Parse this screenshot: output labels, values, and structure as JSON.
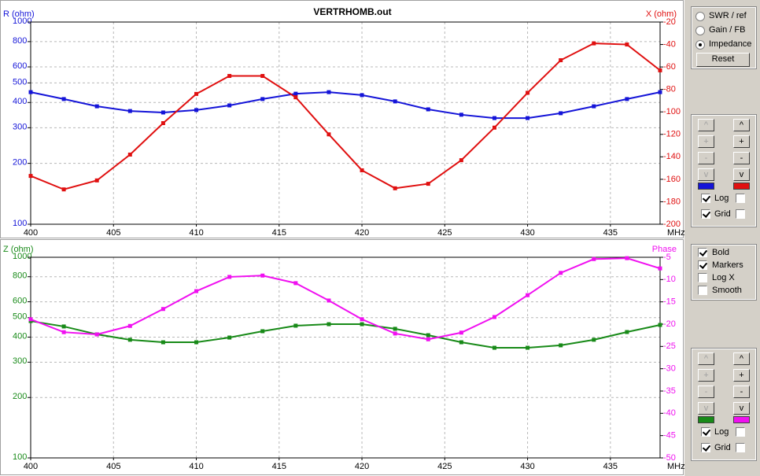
{
  "chart_data": [
    {
      "type": "line",
      "title": "VERTRHOMB.out",
      "x_unit": "MHz",
      "x": [
        400,
        402,
        404,
        406,
        408,
        410,
        412,
        414,
        416,
        418,
        420,
        422,
        424,
        426,
        428,
        430,
        432,
        434,
        436,
        438
      ],
      "xlim": [
        400,
        438
      ],
      "xticks": [
        400,
        405,
        410,
        415,
        420,
        425,
        430,
        435
      ],
      "ylim": [
        100,
        1000
      ],
      "yticks": [
        100,
        200,
        300,
        400,
        500,
        600,
        800,
        1000
      ],
      "ylog": true,
      "y2lim": [
        -200,
        -20
      ],
      "y2ticks": [
        -200,
        -180,
        -160,
        -140,
        -120,
        -100,
        -80,
        -60,
        -40,
        -20
      ],
      "grid": true,
      "markers": true,
      "series": [
        {
          "name": "R (ohm)",
          "color": "#1414d8",
          "values": [
            450,
            416,
            383,
            363,
            357,
            367,
            387,
            416,
            442,
            450,
            435,
            405,
            370,
            348,
            335,
            335,
            354,
            383,
            416,
            450
          ]
        },
        {
          "name": "X (ohm)",
          "color": "#e01010",
          "axis": "y2",
          "values": [
            -157,
            -169,
            -161,
            -138,
            -110,
            -84,
            -68,
            -68,
            -87,
            -120,
            -152,
            -168,
            -164,
            -143,
            -114,
            -83,
            -54,
            -39,
            -40,
            -63
          ]
        }
      ]
    },
    {
      "type": "line",
      "x_unit": "MHz",
      "x": [
        400,
        402,
        404,
        406,
        408,
        410,
        412,
        414,
        416,
        418,
        420,
        422,
        424,
        426,
        428,
        430,
        432,
        434,
        436,
        438
      ],
      "xlim": [
        400,
        438
      ],
      "xticks": [
        400,
        405,
        410,
        415,
        420,
        425,
        430,
        435
      ],
      "ylim": [
        100,
        1000
      ],
      "yticks": [
        100,
        200,
        300,
        400,
        500,
        600,
        800,
        1000
      ],
      "ylog": true,
      "y2lim": [
        -50,
        -5
      ],
      "y2ticks": [
        -50,
        -45,
        -40,
        -35,
        -30,
        -25,
        -20,
        -15,
        -10,
        -5
      ],
      "grid": true,
      "markers": true,
      "series": [
        {
          "name": "Z (ohm)",
          "color": "#188a18",
          "values": [
            481,
            452,
            413,
            388,
            377,
            377,
            398,
            428,
            456,
            464,
            464,
            440,
            409,
            377,
            354,
            354,
            364,
            388,
            424,
            460
          ]
        },
        {
          "name": "Phase",
          "color": "#f010f0",
          "axis": "y2",
          "values": [
            -18.9,
            -21.8,
            -22.3,
            -20.4,
            -16.6,
            -12.6,
            -9.4,
            -9.1,
            -10.8,
            -14.7,
            -18.9,
            -22.1,
            -23.4,
            -21.9,
            -18.4,
            -13.5,
            -8.5,
            -5.4,
            -5.2,
            -7.5
          ]
        }
      ]
    }
  ],
  "controls": {
    "view": {
      "options": [
        {
          "label": "SWR / ref",
          "selected": false
        },
        {
          "label": "Gain / FB",
          "selected": false
        },
        {
          "label": "Impedance",
          "selected": true
        }
      ],
      "button": "Reset"
    },
    "scales": [
      {
        "up": "^",
        "plus": "+",
        "minus": "-",
        "down": "v",
        "checks": [
          {
            "label": "Log",
            "left": true,
            "right": false
          },
          {
            "label": "Grid",
            "left": true,
            "right": false
          }
        ]
      },
      {
        "up": "^",
        "plus": "+",
        "minus": "-",
        "down": "v",
        "checks": [
          {
            "label": "Log",
            "left": true,
            "right": false
          },
          {
            "label": "Grid",
            "left": true,
            "right": false
          }
        ]
      }
    ],
    "options": [
      {
        "label": "Bold",
        "checked": true
      },
      {
        "label": "Markers",
        "checked": true
      },
      {
        "label": "Log X",
        "checked": false
      },
      {
        "label": "Smooth",
        "checked": false
      }
    ]
  }
}
